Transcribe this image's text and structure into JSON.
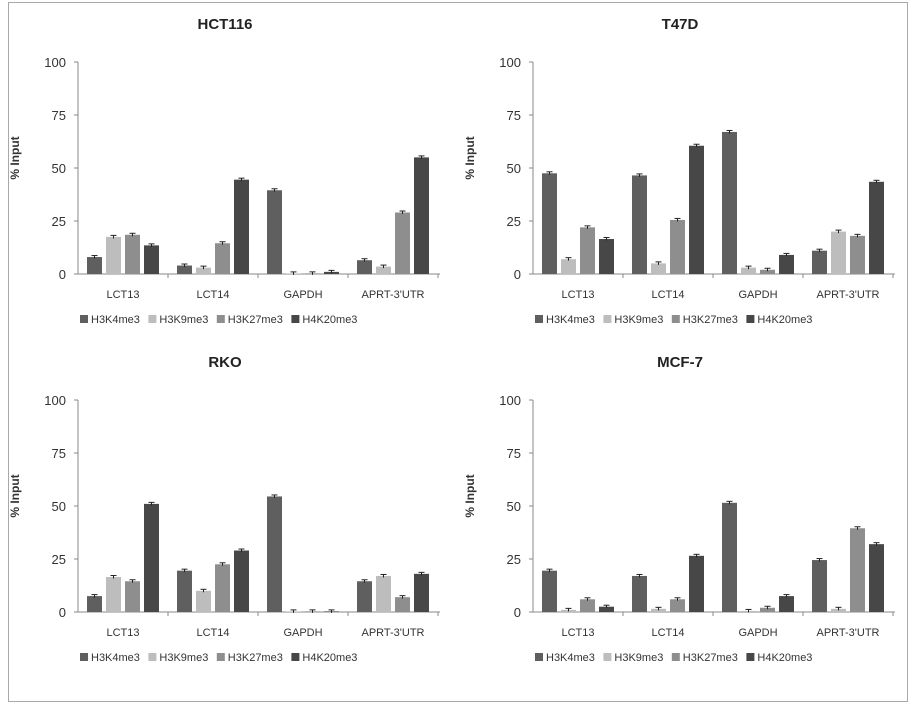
{
  "legend_labels": [
    "H3K4me3",
    "H3K9me3",
    "H3K27me3",
    "H4K20me3"
  ],
  "colors": [
    "#5f5f5f",
    "#bdbdbd",
    "#8e8e8e",
    "#474747"
  ],
  "chart_data": [
    {
      "type": "bar",
      "title": "HCT116",
      "ylabel": "% Input",
      "ylim": [
        0,
        100
      ],
      "yticks": [
        0,
        25,
        50,
        75,
        100
      ],
      "categories": [
        "LCT13",
        "LCT14",
        "GAPDH",
        "APRT-3'UTR"
      ],
      "legend_position": "bottom",
      "series": [
        {
          "name": "H3K4me3",
          "values": [
            8,
            4,
            39.5,
            6.5
          ]
        },
        {
          "name": "H3K9me3",
          "values": [
            17.5,
            3,
            0.2,
            3.5
          ]
        },
        {
          "name": "H3K27me3",
          "values": [
            18.5,
            14.5,
            0.3,
            29
          ]
        },
        {
          "name": "H4K20me3",
          "values": [
            13.5,
            44.5,
            1,
            55
          ]
        }
      ]
    },
    {
      "type": "bar",
      "title": "T47D",
      "ylabel": "% Input",
      "ylim": [
        0,
        100
      ],
      "yticks": [
        0,
        25,
        50,
        75,
        100
      ],
      "categories": [
        "LCT13",
        "LCT14",
        "GAPDH",
        "APRT-3'UTR"
      ],
      "legend_position": "bottom",
      "series": [
        {
          "name": "H3K4me3",
          "values": [
            47.5,
            46.5,
            67,
            11
          ]
        },
        {
          "name": "H3K9me3",
          "values": [
            7,
            5,
            3,
            20
          ]
        },
        {
          "name": "H3K27me3",
          "values": [
            22,
            25.5,
            2,
            18
          ]
        },
        {
          "name": "H4K20me3",
          "values": [
            16.5,
            60.5,
            9,
            43.5
          ]
        }
      ]
    },
    {
      "type": "bar",
      "title": "RKO",
      "ylabel": "% Input",
      "ylim": [
        0,
        100
      ],
      "yticks": [
        0,
        25,
        50,
        75,
        100
      ],
      "categories": [
        "LCT13",
        "LCT14",
        "GAPDH",
        "APRT-3'UTR"
      ],
      "legend_position": "bottom",
      "series": [
        {
          "name": "H3K4me3",
          "values": [
            7.5,
            19.5,
            54.5,
            14.5
          ]
        },
        {
          "name": "H3K9me3",
          "values": [
            16.5,
            10,
            0,
            17
          ]
        },
        {
          "name": "H3K27me3",
          "values": [
            14.5,
            22.5,
            0.3,
            7
          ]
        },
        {
          "name": "H4K20me3",
          "values": [
            51,
            29,
            0,
            18
          ]
        }
      ]
    },
    {
      "type": "bar",
      "title": "MCF-7",
      "ylabel": "% Input",
      "ylim": [
        0,
        100
      ],
      "yticks": [
        0,
        25,
        50,
        75,
        100
      ],
      "categories": [
        "LCT13",
        "LCT14",
        "GAPDH",
        "APRT-3'UTR"
      ],
      "legend_position": "bottom",
      "series": [
        {
          "name": "H3K4me3",
          "values": [
            19.5,
            17,
            51.5,
            24.5
          ]
        },
        {
          "name": "H3K9me3",
          "values": [
            1,
            1.5,
            0.5,
            1.5
          ]
        },
        {
          "name": "H3K27me3",
          "values": [
            6,
            6,
            2,
            39.5
          ]
        },
        {
          "name": "H4K20me3",
          "values": [
            2.5,
            26.5,
            7.5,
            32
          ]
        }
      ]
    }
  ]
}
